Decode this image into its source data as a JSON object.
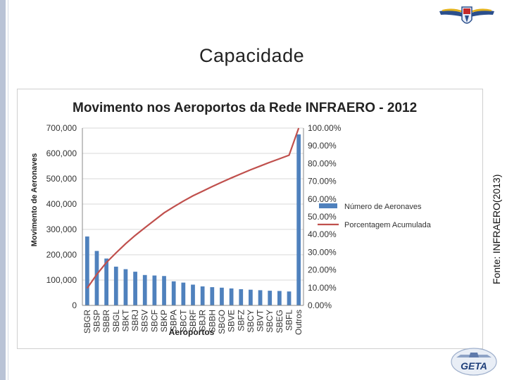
{
  "slide": {
    "title": "Capacidade",
    "source": "Fonte: INFRAERO(2013)",
    "footer_logo_text": "GETA"
  },
  "icons": {
    "top_right": "ita-wings-logo-icon",
    "bottom_right": "geta-logo-icon"
  },
  "colors": {
    "bar": "#4f81bd",
    "line": "#c0504d",
    "side_bar": "#b9c3d6"
  },
  "chart_data": {
    "type": "bar",
    "title": "Movimento nos Aeroportos da Rede INFRAERO - 2012",
    "xlabel": "Aeroportos",
    "ylabel": "Movimento de Aeronaves",
    "ylim": [
      0,
      700000
    ],
    "y2lim": [
      0,
      100
    ],
    "yticks": [
      "0",
      "100,000",
      "200,000",
      "300,000",
      "400,000",
      "500,000",
      "600,000",
      "700,000"
    ],
    "y2ticks": [
      "0.00%",
      "10.00%",
      "20.00%",
      "30.00%",
      "40.00%",
      "50.00%",
      "60.00%",
      "70.00%",
      "80.00%",
      "90.00%",
      "100.00%"
    ],
    "grid": true,
    "legend_position": "right",
    "categories": [
      "SBGR",
      "SBSP",
      "SBBR",
      "SBGL",
      "SBKT",
      "SBRJ",
      "SBSV",
      "SBCF",
      "SBKP",
      "SBPA",
      "SBCT",
      "SBRF",
      "SBJR",
      "SBBH",
      "SBGO",
      "SBVE",
      "SBFZ",
      "SBCY",
      "SBVT",
      "SBCY",
      "SBEG",
      "SBFL",
      "Outros"
    ],
    "series": [
      {
        "name": "Número de Aeronaves",
        "axis": "left",
        "values": [
          272000,
          215000,
          185000,
          153000,
          143000,
          133000,
          120000,
          118000,
          116000,
          95000,
          90000,
          82000,
          75000,
          72000,
          70000,
          67000,
          64000,
          62000,
          60000,
          58000,
          57000,
          55000,
          675000
        ]
      },
      {
        "name": "Porcentagem Acumulada",
        "axis": "right",
        "values": [
          9.7,
          17.5,
          24.2,
          29.6,
          34.8,
          39.5,
          43.8,
          48.0,
          52.2,
          55.6,
          58.8,
          61.8,
          64.4,
          67.0,
          69.5,
          71.9,
          74.2,
          76.5,
          78.6,
          80.7,
          82.7,
          84.7,
          100.0
        ]
      }
    ]
  }
}
